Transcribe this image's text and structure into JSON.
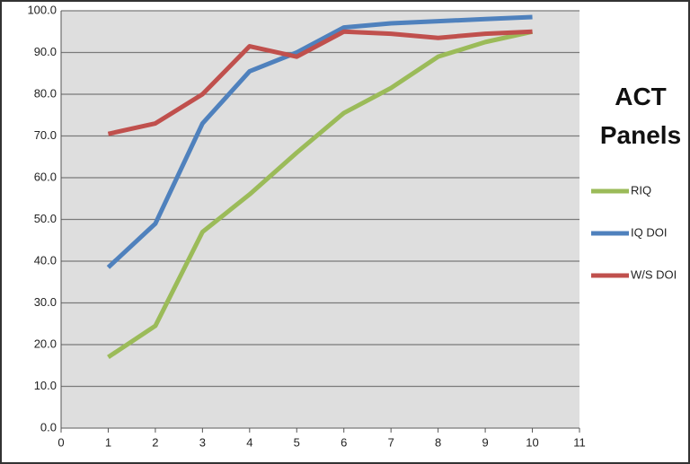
{
  "chart_data": {
    "type": "line",
    "title": "ACT Panels",
    "x": [
      1,
      2,
      3,
      4,
      5,
      6,
      7,
      8,
      9,
      10
    ],
    "series": [
      {
        "name": "RIQ",
        "color": "#9bbb59",
        "values": [
          17,
          24.5,
          47,
          56,
          66,
          75.5,
          81.5,
          89,
          92.5,
          95
        ]
      },
      {
        "name": "IQ DOI",
        "color": "#4f81bd",
        "values": [
          38.5,
          49,
          73,
          85.5,
          90,
          96,
          97,
          97.5,
          98,
          98.5
        ]
      },
      {
        "name": "W/S DOI",
        "color": "#c0504d",
        "values": [
          70.5,
          73,
          80,
          91.5,
          89,
          95,
          94.5,
          93.5,
          94.5,
          95
        ]
      }
    ],
    "xlim": [
      0,
      11
    ],
    "xticks": [
      0,
      1,
      2,
      3,
      4,
      5,
      6,
      7,
      8,
      9,
      10,
      11
    ],
    "ylim": [
      0,
      100
    ],
    "yticks": [
      {
        "value": 0,
        "label": "0.0"
      },
      {
        "value": 10,
        "label": "10.0"
      },
      {
        "value": 20,
        "label": "20.0"
      },
      {
        "value": 30,
        "label": "30.0"
      },
      {
        "value": 40,
        "label": "40.0"
      },
      {
        "value": 50,
        "label": "50.0"
      },
      {
        "value": 60,
        "label": "60.0"
      },
      {
        "value": 70,
        "label": "70.0"
      },
      {
        "value": 80,
        "label": "80.0"
      },
      {
        "value": 90,
        "label": "90.0"
      },
      {
        "value": 100,
        "label": "100.0"
      }
    ],
    "grid": true,
    "legend": "right"
  }
}
